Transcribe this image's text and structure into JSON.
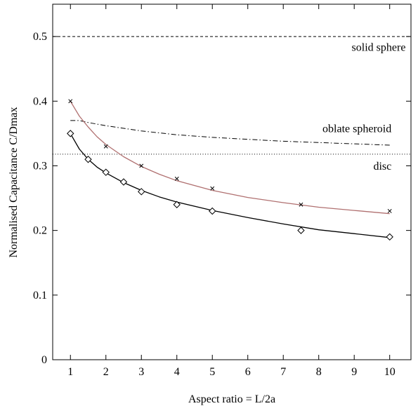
{
  "chart_data": {
    "type": "scatter",
    "title": "",
    "xlabel": "Aspect ratio = L/2a",
    "ylabel": "Normalised Capacitance  C/Dmax",
    "xlim": [
      0.5,
      10.6
    ],
    "ylim": [
      0,
      0.55
    ],
    "x_ticks": [
      1,
      2,
      3,
      4,
      5,
      6,
      7,
      8,
      9,
      10
    ],
    "y_ticks": [
      0,
      0.1,
      0.2,
      0.3,
      0.4,
      0.5
    ],
    "y_tick_labels": [
      "0",
      "0.1",
      "0.2",
      "0.3",
      "0.4",
      "0.5"
    ],
    "grid": false,
    "series": [
      {
        "marker": "cross",
        "color": "#000000",
        "x": [
          1,
          2,
          3,
          4,
          5,
          7.5,
          10
        ],
        "y": [
          0.4,
          0.33,
          0.3,
          0.28,
          0.265,
          0.24,
          0.23
        ]
      },
      {
        "marker": "diamond",
        "color": "#000000",
        "x": [
          1,
          1.5,
          2,
          2.5,
          3,
          4,
          5,
          7.5,
          10
        ],
        "y": [
          0.35,
          0.31,
          0.29,
          0.275,
          0.26,
          0.24,
          0.23,
          0.2,
          0.19
        ]
      }
    ],
    "curves": [
      {
        "style": "solid",
        "color": "#b07070",
        "x": [
          1,
          1.25,
          1.5,
          1.75,
          2,
          2.5,
          3,
          3.5,
          4,
          5,
          6,
          7,
          8,
          9,
          10
        ],
        "y": [
          0.4,
          0.377,
          0.36,
          0.345,
          0.333,
          0.314,
          0.299,
          0.287,
          0.277,
          0.262,
          0.251,
          0.243,
          0.236,
          0.231,
          0.226
        ]
      },
      {
        "style": "solid",
        "color": "#000000",
        "x": [
          1,
          1.25,
          1.5,
          1.75,
          2,
          2.5,
          3,
          3.5,
          4,
          5,
          6,
          7,
          8,
          9,
          10
        ],
        "y": [
          0.35,
          0.326,
          0.31,
          0.298,
          0.289,
          0.274,
          0.262,
          0.252,
          0.244,
          0.231,
          0.22,
          0.21,
          0.201,
          0.195,
          0.189
        ]
      }
    ],
    "reference_lines": [
      {
        "label": "solid sphere",
        "style": "dashed",
        "x": [
          0.5,
          10.6
        ],
        "y": [
          0.5,
          0.5
        ]
      },
      {
        "label": "oblate spheroid",
        "style": "dashdot",
        "x": [
          1,
          1.25,
          1.5,
          2,
          3,
          4,
          5,
          6,
          7,
          8,
          9,
          10
        ],
        "y": [
          0.37,
          0.37,
          0.367,
          0.362,
          0.354,
          0.348,
          0.344,
          0.341,
          0.338,
          0.336,
          0.334,
          0.332
        ]
      },
      {
        "label": "disc",
        "style": "dotted",
        "x": [
          0.5,
          10.6
        ],
        "y": [
          0.318,
          0.318
        ]
      }
    ]
  }
}
